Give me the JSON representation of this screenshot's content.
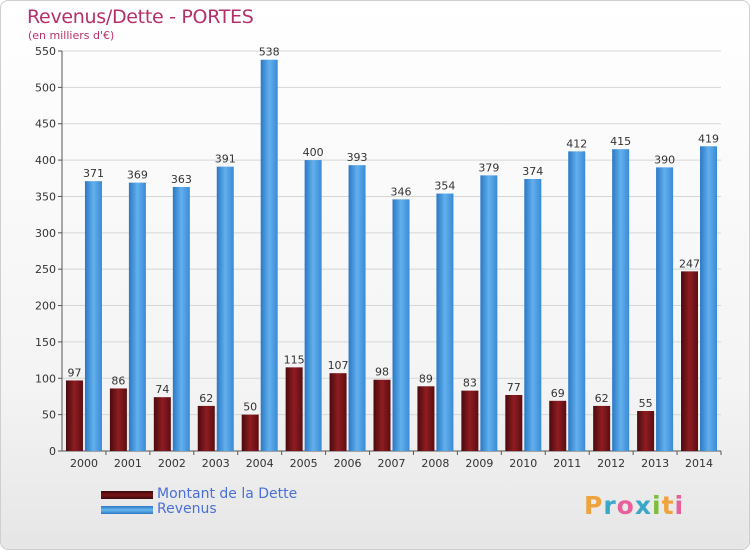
{
  "chart_data": {
    "type": "bar",
    "title": "Revenus/Dette - PORTES",
    "subtitle": "(en milliers d'€)",
    "categories": [
      "2000",
      "2001",
      "2002",
      "2003",
      "2004",
      "2005",
      "2006",
      "2007",
      "2008",
      "2009",
      "2010",
      "2011",
      "2012",
      "2013",
      "2014"
    ],
    "series": [
      {
        "name": "Montant de la Dette",
        "color": "#7a1418",
        "values": [
          97,
          86,
          74,
          62,
          50,
          115,
          107,
          98,
          89,
          83,
          77,
          69,
          62,
          55,
          247
        ]
      },
      {
        "name": "Revenus",
        "color": "#3d8fd8",
        "values": [
          371,
          369,
          363,
          391,
          538,
          400,
          393,
          346,
          354,
          379,
          374,
          412,
          415,
          390,
          419
        ]
      }
    ],
    "ylim": [
      0,
      550
    ],
    "yticks": [
      0,
      50,
      100,
      150,
      200,
      250,
      300,
      350,
      400,
      450,
      500,
      550
    ],
    "grid": true,
    "legend": "bottom-left"
  },
  "logo": {
    "text": "Proxiti"
  }
}
